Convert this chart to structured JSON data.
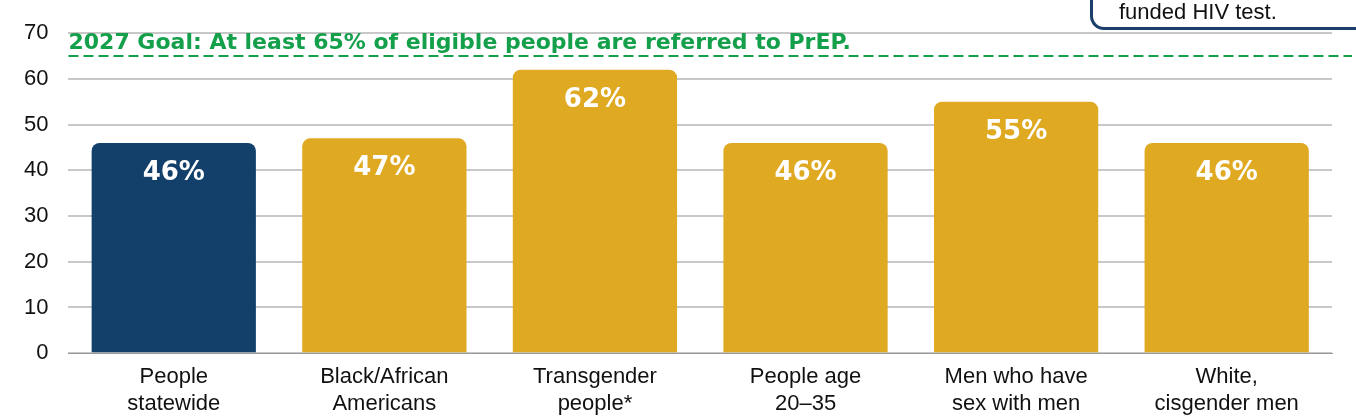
{
  "chart_data": {
    "type": "bar",
    "categories": [
      "People\nstatewide",
      "Black/African\nAmericans",
      "Transgender\npeople*",
      "People age\n20–35",
      "Men who have\nsex with men",
      "White,\ncisgender men"
    ],
    "values": [
      46,
      47,
      62,
      46,
      55,
      46
    ],
    "colors": [
      "#12406b",
      "#dfa922",
      "#dfa922",
      "#dfa922",
      "#dfa922",
      "#dfa922"
    ],
    "value_labels": [
      "46%",
      "47%",
      "62%",
      "46%",
      "55%",
      "46%"
    ],
    "ylim": [
      0,
      70
    ],
    "yticks": [
      0,
      10,
      20,
      30,
      40,
      50,
      60,
      70
    ],
    "grid": "y",
    "legend": false,
    "ref_lines": [
      {
        "axis": "y",
        "value": 65,
        "label": "2027 Goal: At least 65% of eligible people are referred to PrEP.",
        "color": "#14a04b",
        "line_style": "dashed"
      }
    ],
    "annotations": [
      "funded HIV test."
    ]
  }
}
